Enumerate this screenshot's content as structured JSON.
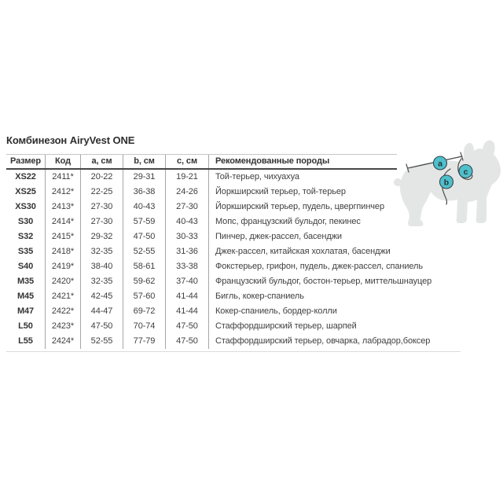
{
  "title": "Комбинезон AiryVest ONE",
  "table": {
    "columns": [
      "Размер",
      "Код",
      "a, см",
      "b, см",
      "c, см",
      "Рекомендованные породы"
    ],
    "rows": [
      [
        "XS22",
        "2411*",
        "20-22",
        "29-31",
        "19-21",
        "Той-терьер, чихуахуа"
      ],
      [
        "XS25",
        "2412*",
        "22-25",
        "36-38",
        "24-26",
        "Йоркширский терьер, той-терьер"
      ],
      [
        "XS30",
        "2413*",
        "27-30",
        "40-43",
        "27-30",
        "Йоркширский терьер, пудель, цвергпинчер"
      ],
      [
        "S30",
        "2414*",
        "27-30",
        "57-59",
        "40-43",
        "Мопс, французский бульдог, пекинес"
      ],
      [
        "S32",
        "2415*",
        "29-32",
        "47-50",
        "30-33",
        "Пинчер, джек-рассел, басенджи"
      ],
      [
        "S35",
        "2418*",
        "32-35",
        "52-55",
        "31-36",
        "Джек-рассел, китайская хохлатая, басенджи"
      ],
      [
        "S40",
        "2419*",
        "38-40",
        "58-61",
        "33-38",
        "Фокстерьер, грифон, пудель, джек-рассел, спаниель"
      ],
      [
        "M35",
        "2420*",
        "32-35",
        "59-62",
        "37-40",
        "Французский бульдог, бостон-терьер, миттельшнауцер"
      ],
      [
        "M45",
        "2421*",
        "42-45",
        "57-60",
        "41-44",
        "Бигль, кокер-спаниель"
      ],
      [
        "M47",
        "2422*",
        "44-47",
        "69-72",
        "41-44",
        "Кокер-спаниель, бордер-колли"
      ],
      [
        "L50",
        "2423*",
        "47-50",
        "70-74",
        "47-50",
        "Стаффордширский терьер, шарпей"
      ],
      [
        "L55",
        "2424*",
        "52-55",
        "77-79",
        "47-50",
        "Стаффордширский терьер, овчарка, лабрадор,боксер"
      ]
    ]
  },
  "diagram": {
    "labels": {
      "a": "a",
      "b": "b",
      "c": "c"
    },
    "colors": {
      "silhouette": "#e4e5e5",
      "marker_fill": "#4fc0cb",
      "marker_stroke": "#33454b",
      "letter": "#243439",
      "line": "#4a4a4a"
    }
  }
}
